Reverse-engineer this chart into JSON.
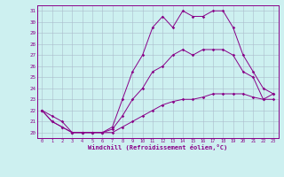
{
  "xlabel": "Windchill (Refroidissement éolien,°C)",
  "bg_color": "#cdf0f0",
  "grid_color": "#aabbcc",
  "line_color": "#880088",
  "xlim": [
    -0.5,
    23.5
  ],
  "ylim": [
    19.5,
    31.5
  ],
  "yticks": [
    20,
    21,
    22,
    23,
    24,
    25,
    26,
    27,
    28,
    29,
    30,
    31
  ],
  "xticks": [
    0,
    1,
    2,
    3,
    4,
    5,
    6,
    7,
    8,
    9,
    10,
    11,
    12,
    13,
    14,
    15,
    16,
    17,
    18,
    19,
    20,
    21,
    22,
    23
  ],
  "line1_x": [
    0,
    1,
    2,
    3,
    4,
    5,
    6,
    7,
    8,
    9,
    10,
    11,
    12,
    13,
    14,
    15,
    16,
    17,
    18,
    19,
    20,
    21,
    22,
    23
  ],
  "line1_y": [
    22,
    21,
    20.5,
    20,
    20,
    20,
    20,
    20.5,
    23,
    25.5,
    27,
    29.5,
    30.5,
    29.5,
    31,
    30.5,
    30.5,
    31,
    31,
    29.5,
    27,
    25.5,
    24,
    23.5
  ],
  "line2_x": [
    0,
    1,
    2,
    3,
    4,
    5,
    6,
    7,
    8,
    9,
    10,
    11,
    12,
    13,
    14,
    15,
    16,
    17,
    18,
    19,
    20,
    21,
    22,
    23
  ],
  "line2_y": [
    22,
    21,
    20.5,
    20,
    20,
    20,
    20,
    20.3,
    21.5,
    23,
    24,
    25.5,
    26,
    27,
    27.5,
    27,
    27.5,
    27.5,
    27.5,
    27,
    25.5,
    25,
    23,
    23.5
  ],
  "line3_x": [
    0,
    1,
    2,
    3,
    4,
    5,
    6,
    7,
    8,
    9,
    10,
    11,
    12,
    13,
    14,
    15,
    16,
    17,
    18,
    19,
    20,
    21,
    22,
    23
  ],
  "line3_y": [
    22,
    21.5,
    21,
    20,
    20,
    20,
    20,
    20,
    20.5,
    21,
    21.5,
    22,
    22.5,
    22.8,
    23,
    23,
    23.2,
    23.5,
    23.5,
    23.5,
    23.5,
    23.2,
    23,
    23
  ]
}
